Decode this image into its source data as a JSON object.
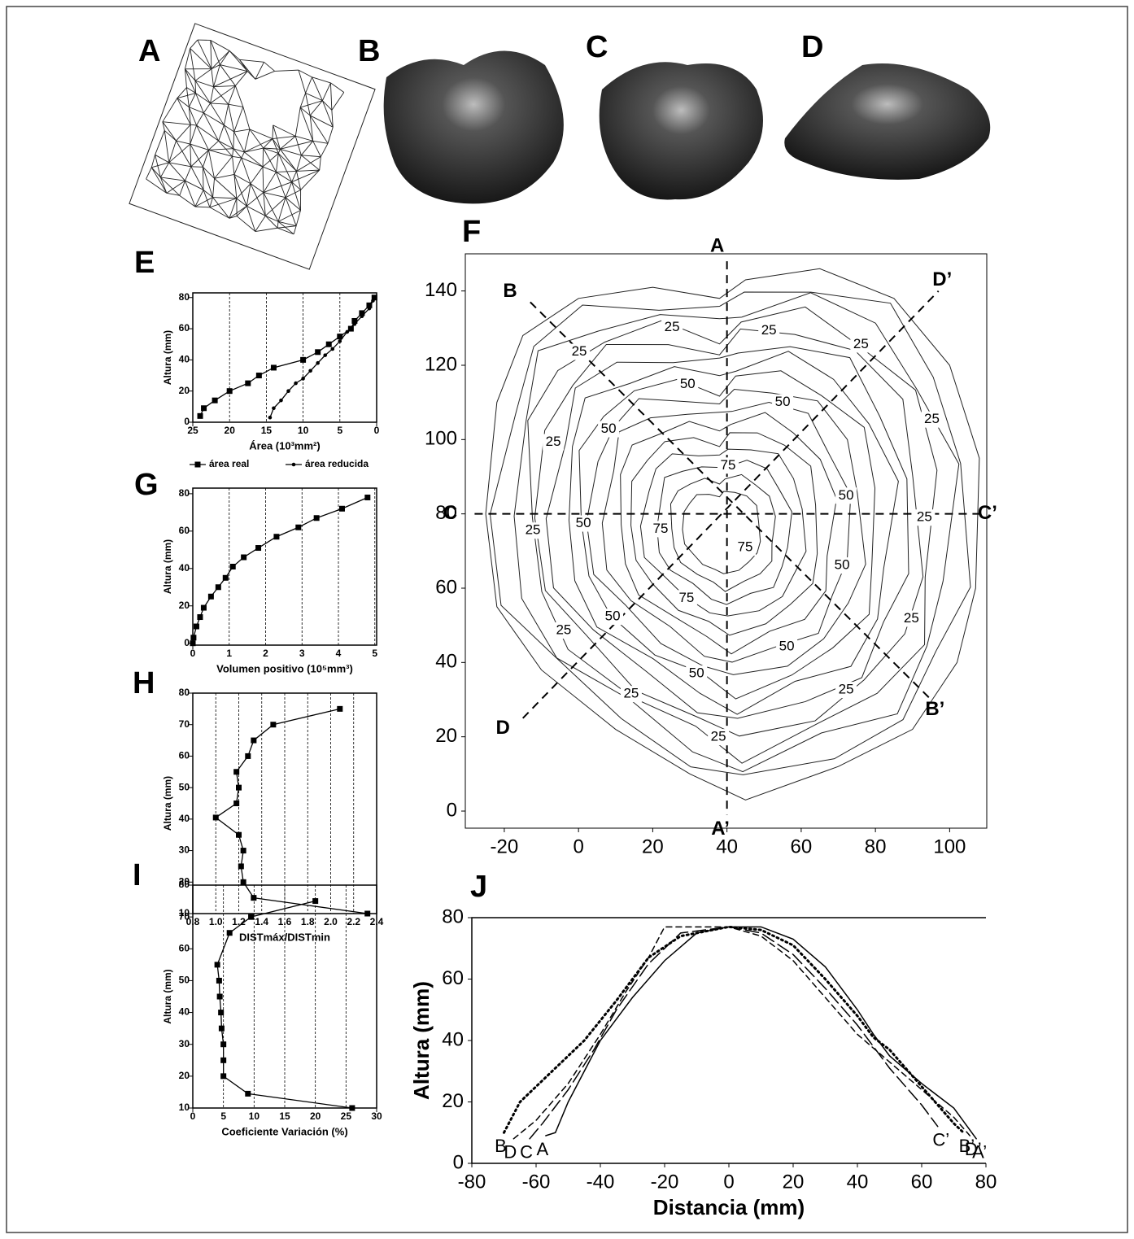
{
  "panel_labels": [
    "A",
    "B",
    "C",
    "D",
    "E",
    "F",
    "G",
    "H",
    "I",
    "J"
  ],
  "chart_data": [
    {
      "type": "line",
      "xlabel": "Área (10³mm²)",
      "ylabel": "Altura (mm)",
      "xlim": [
        25,
        0
      ],
      "xticks": [
        25,
        20,
        15,
        10,
        5,
        0
      ],
      "ylim": [
        0,
        83
      ],
      "yticks": [
        0,
        20,
        40,
        60,
        80
      ],
      "grid": "x",
      "series": [
        {
          "name": "área real",
          "color": "#000000",
          "marker": "square",
          "x": [
            24,
            23.5,
            22,
            20,
            17.5,
            16,
            14,
            10,
            8,
            6.5,
            5,
            3.5,
            3,
            2,
            1,
            0.3
          ],
          "values": [
            4,
            9,
            14,
            20,
            25,
            30,
            35,
            40,
            45,
            50,
            55,
            60,
            65,
            70,
            75,
            80
          ]
        },
        {
          "name": "área reducida",
          "color": "#000000",
          "marker": "circle",
          "x": [
            14.5,
            14,
            13,
            12,
            11,
            10,
            9,
            8,
            7,
            6,
            5,
            4,
            3,
            2,
            1,
            0.5,
            0.2
          ],
          "values": [
            3,
            9,
            14,
            20,
            25,
            28,
            33,
            38,
            43,
            47,
            52,
            58,
            63,
            68,
            73,
            78,
            80
          ]
        }
      ]
    },
    {
      "type": "contour",
      "xlim": [
        -30.5,
        110
      ],
      "xticks": [
        -20,
        0,
        20,
        40,
        60,
        80,
        100
      ],
      "ylim": [
        -4.6,
        150
      ],
      "yticks": [
        0,
        20,
        40,
        60,
        80,
        100,
        120,
        140
      ],
      "outline": {
        "x": [
          -25,
          -22,
          -15,
          0,
          20,
          38,
          45,
          65,
          85,
          100,
          108,
          107,
          102,
          90,
          70,
          45,
          30,
          10,
          -10,
          -22
        ],
        "y": [
          80,
          110,
          128,
          138,
          141,
          138,
          143,
          146,
          138,
          120,
          95,
          60,
          40,
          22,
          12,
          3,
          10,
          22,
          38,
          55
        ]
      },
      "peak": [
        38,
        75
      ],
      "contour_labels": [
        {
          "level": 25,
          "x": 25.2,
          "y": 130.2
        },
        {
          "level": 25,
          "x": 51.3,
          "y": 129.3
        },
        {
          "level": 25,
          "x": 76.1,
          "y": 125.6
        },
        {
          "level": 25,
          "x": 0.2,
          "y": 123.6
        },
        {
          "level": 50,
          "x": 29.4,
          "y": 114.9
        },
        {
          "level": 50,
          "x": 55,
          "y": 110
        },
        {
          "level": 25,
          "x": 95.2,
          "y": 105.4
        },
        {
          "level": 50,
          "x": 8.1,
          "y": 102.8
        },
        {
          "level": 25,
          "x": -6.8,
          "y": 99.3
        },
        {
          "level": 75,
          "x": 40.3,
          "y": 93
        },
        {
          "level": 50,
          "x": 72.1,
          "y": 84.9
        },
        {
          "level": 25,
          "x": 93.2,
          "y": 79
        },
        {
          "level": 25,
          "x": -12.3,
          "y": 75.5
        },
        {
          "level": 50,
          "x": 1.3,
          "y": 77.4
        },
        {
          "level": 75,
          "x": 22.1,
          "y": 75.9
        },
        {
          "level": 75,
          "x": 44.9,
          "y": 70.9
        },
        {
          "level": 50,
          "x": 71,
          "y": 66.1
        },
        {
          "level": 75,
          "x": 29.1,
          "y": 57.3
        },
        {
          "level": 50,
          "x": 9.2,
          "y": 52.3
        },
        {
          "level": 25,
          "x": -4,
          "y": 48.6
        },
        {
          "level": 25,
          "x": 89.7,
          "y": 51.8
        },
        {
          "level": 50,
          "x": 56.1,
          "y": 44.2
        },
        {
          "level": 50,
          "x": 31.8,
          "y": 37
        },
        {
          "level": 25,
          "x": 72.1,
          "y": 32.6
        },
        {
          "level": 25,
          "x": 14.2,
          "y": 31.5
        },
        {
          "level": 25,
          "x": 37.7,
          "y": 19.9
        }
      ],
      "sections": [
        {
          "start": "A",
          "end": "A’",
          "x": [
            40,
            40
          ],
          "y": [
            148,
            -1
          ]
        },
        {
          "start": "B",
          "end": "B’",
          "x": [
            -13,
            95
          ],
          "y": [
            137,
            30
          ]
        },
        {
          "start": "C",
          "end": "C’",
          "x": [
            -28,
            108
          ],
          "y": [
            80,
            80
          ]
        },
        {
          "start": "D",
          "end": "D’",
          "x": [
            -15,
            97
          ],
          "y": [
            25,
            140
          ]
        }
      ]
    },
    {
      "type": "line",
      "xlabel": "Volumen positivo (10⁵mm³)",
      "ylabel": "Altura (mm)",
      "xlim": [
        0,
        5.05
      ],
      "xticks": [
        0,
        1,
        2,
        3,
        4,
        5
      ],
      "ylim": [
        -1,
        83
      ],
      "yticks": [
        0,
        20,
        40,
        60,
        80
      ],
      "grid": "x",
      "series": [
        {
          "color": "#000000",
          "marker": "square",
          "x": [
            0,
            0.02,
            0.1,
            0.2,
            0.3,
            0.5,
            0.7,
            0.9,
            1.1,
            1.4,
            1.8,
            2.3,
            2.9,
            3.4,
            4.1,
            4.8
          ],
          "values": [
            0,
            3,
            9,
            14,
            19,
            25,
            30,
            35,
            41,
            46,
            51,
            57,
            62,
            67,
            72,
            78
          ]
        }
      ]
    },
    {
      "type": "line",
      "xlabel": "DISTmáx/DISTmin",
      "ylabel": "Altura (mm)",
      "xlim": [
        0.8,
        2.4
      ],
      "xticks": [
        0.8,
        {
          "value": 1,
          "label": "1.0"
        },
        1.2,
        1.4,
        1.6,
        1.8,
        {
          "value": 2,
          "label": "2.0"
        },
        2.2,
        2.4
      ],
      "ylim": [
        10,
        80
      ],
      "yticks": [
        10,
        20,
        30,
        40,
        50,
        60,
        70,
        80
      ],
      "grid": "x",
      "series": [
        {
          "color": "#000000",
          "marker": "square",
          "x": [
            2.08,
            1.5,
            1.33,
            1.28,
            1.18,
            1.2,
            1.18,
            1.0,
            1.2,
            1.24,
            1.22,
            1.24,
            1.33,
            2.32
          ],
          "values": [
            75,
            70,
            65,
            60,
            55,
            50,
            45,
            40.5,
            35,
            30,
            25,
            20,
            15,
            10
          ]
        }
      ]
    },
    {
      "type": "line",
      "xlabel": "Coeficiente Variación (%)",
      "ylabel": "Altura (mm)",
      "xlim": [
        0,
        30
      ],
      "xticks": [
        0,
        5,
        10,
        15,
        20,
        25,
        30
      ],
      "ylim": [
        10,
        80
      ],
      "yticks": [
        10,
        20,
        30,
        40,
        50,
        60,
        70,
        80
      ],
      "grid": "x",
      "series": [
        {
          "color": "#000000",
          "marker": "square",
          "x": [
            20,
            9.5,
            6,
            4,
            4.3,
            4.4,
            4.6,
            4.7,
            5,
            5,
            5,
            9,
            26
          ],
          "values": [
            75,
            70,
            65,
            55,
            50,
            45,
            40,
            35,
            30,
            25,
            20,
            14.5,
            10
          ]
        }
      ]
    },
    {
      "type": "line",
      "xlabel": "Distancia (mm)",
      "ylabel": "Altura (mm)",
      "xlim": [
        -80,
        80
      ],
      "xticks": [
        -80,
        -60,
        -40,
        -20,
        0,
        20,
        40,
        60,
        80
      ],
      "ylim": [
        0,
        80
      ],
      "yticks": [
        0,
        20,
        40,
        60,
        80
      ],
      "series": [
        {
          "color": "#000000",
          "dash": "solid",
          "start_label": "A",
          "end_label": "A’",
          "x": [
            -57,
            -54,
            -50,
            -45,
            -40,
            -30,
            -20,
            -10,
            0,
            10,
            20,
            30,
            40,
            45,
            50,
            60,
            70,
            77
          ],
          "values": [
            9,
            10,
            20,
            30,
            40,
            54,
            66,
            75,
            77,
            77,
            73,
            64,
            50,
            42,
            35,
            26,
            18,
            8
          ]
        },
        {
          "color": "#000000",
          "dash": "dotted",
          "start_label": "B",
          "end_label": "B’",
          "x": [
            -70,
            -65,
            -55,
            -45,
            -35,
            -25,
            -15,
            0,
            10,
            20,
            30,
            40,
            45,
            50,
            60,
            70,
            73
          ],
          "values": [
            10,
            20,
            30,
            40,
            53,
            67,
            74,
            77,
            76,
            71,
            60,
            48,
            41,
            37,
            25,
            13,
            10
          ]
        },
        {
          "color": "#000000",
          "dash": "long",
          "start_label": "C",
          "end_label": "C’",
          "x": [
            -62,
            -58,
            -50,
            -42,
            -35,
            -25,
            -15,
            0,
            10,
            20,
            30,
            40,
            50,
            60,
            65
          ],
          "values": [
            8,
            13,
            24,
            37,
            50,
            65,
            75,
            77,
            75,
            68,
            57,
            45,
            31,
            19,
            12
          ]
        },
        {
          "color": "#000000",
          "dash": "short",
          "start_label": "D",
          "end_label": "D’",
          "x": [
            -67,
            -60,
            -50,
            -40,
            -32,
            -25,
            -20,
            -10,
            0,
            10,
            20,
            30,
            40,
            50,
            60,
            70,
            75
          ],
          "values": [
            8,
            14,
            26,
            42,
            56,
            67,
            77,
            77,
            77,
            74,
            66,
            54,
            42,
            33,
            24,
            15,
            9
          ]
        }
      ]
    }
  ]
}
